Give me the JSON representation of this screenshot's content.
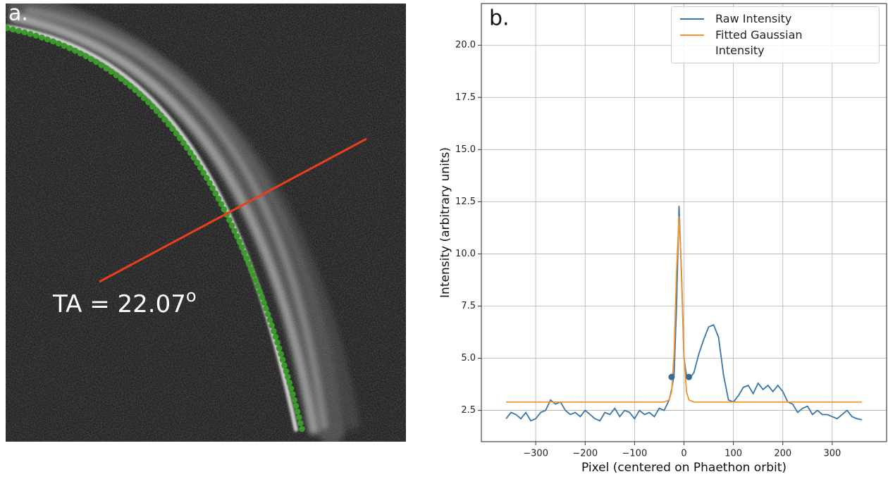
{
  "chart_data": [
    {
      "type": "image",
      "panel_label": "a.",
      "annotation": "TA = 22.07",
      "annotation_superscript": "o"
    },
    {
      "type": "line",
      "panel_label": "b.",
      "x_label": "Pixel (centered on Phaethon orbit)",
      "y_label": "Intensity (arbitrary units)",
      "xlim": [
        -410,
        410
      ],
      "ylim": [
        1.0,
        22.0
      ],
      "xticks": [
        {
          "value": -300,
          "label": "−300"
        },
        {
          "value": -200,
          "label": "−200"
        },
        {
          "value": -100,
          "label": "−100"
        },
        0,
        100,
        200,
        300
      ],
      "yticks": [
        2.5,
        {
          "value": 5,
          "label": "5.0"
        },
        7.5,
        {
          "value": 10,
          "label": "10.0"
        },
        12.5,
        {
          "value": 15,
          "label": "15.0"
        },
        17.5,
        {
          "value": 20,
          "label": "20.0"
        }
      ],
      "grid": true,
      "legend": "upper right",
      "series": [
        {
          "name": "Raw Intensity",
          "color": "#3a75a8",
          "x": [
            -360,
            -350,
            -340,
            -330,
            -320,
            -310,
            -300,
            -290,
            -280,
            -270,
            -260,
            -250,
            -240,
            -230,
            -220,
            -210,
            -200,
            -190,
            -180,
            -170,
            -160,
            -150,
            -140,
            -130,
            -120,
            -110,
            -100,
            -90,
            -80,
            -70,
            -60,
            -50,
            -40,
            -30,
            -25,
            -20,
            -15,
            -10,
            -5,
            0,
            5,
            10,
            20,
            30,
            40,
            50,
            60,
            70,
            80,
            90,
            100,
            110,
            120,
            130,
            140,
            150,
            160,
            170,
            180,
            190,
            200,
            210,
            220,
            230,
            240,
            250,
            260,
            270,
            280,
            290,
            300,
            310,
            320,
            330,
            340,
            350,
            360
          ],
          "values": [
            2.1,
            2.4,
            2.3,
            2.1,
            2.4,
            2.0,
            2.1,
            2.4,
            2.5,
            3.0,
            2.8,
            2.9,
            2.5,
            2.3,
            2.4,
            2.2,
            2.5,
            2.3,
            2.1,
            2.0,
            2.4,
            2.3,
            2.6,
            2.2,
            2.5,
            2.4,
            2.1,
            2.5,
            2.3,
            2.4,
            2.2,
            2.6,
            2.5,
            3.0,
            3.5,
            4.2,
            7.5,
            12.3,
            9.0,
            5.0,
            4.2,
            4.0,
            4.3,
            5.2,
            5.9,
            6.5,
            6.6,
            6.0,
            4.2,
            3.0,
            2.9,
            3.2,
            3.6,
            3.7,
            3.3,
            3.8,
            3.5,
            3.7,
            3.4,
            3.7,
            3.4,
            2.9,
            2.8,
            2.4,
            2.6,
            2.7,
            2.3,
            2.5,
            2.3,
            2.3,
            2.2,
            2.1,
            2.3,
            2.5,
            2.2,
            2.1,
            2.05
          ]
        },
        {
          "name": "Fitted Gaussian Intensity",
          "color": "#f5922b",
          "x": [
            -360,
            -40,
            -30,
            -25,
            -20,
            -15,
            -10,
            -5,
            0,
            5,
            10,
            20,
            360
          ],
          "values": [
            2.9,
            2.9,
            3.0,
            3.4,
            5.2,
            9.2,
            11.8,
            9.2,
            5.2,
            3.4,
            3.0,
            2.9,
            2.9
          ]
        }
      ],
      "markers": {
        "x": [
          -25,
          10
        ],
        "values": [
          4.1,
          4.1
        ],
        "color": "#3a6a94"
      }
    }
  ]
}
